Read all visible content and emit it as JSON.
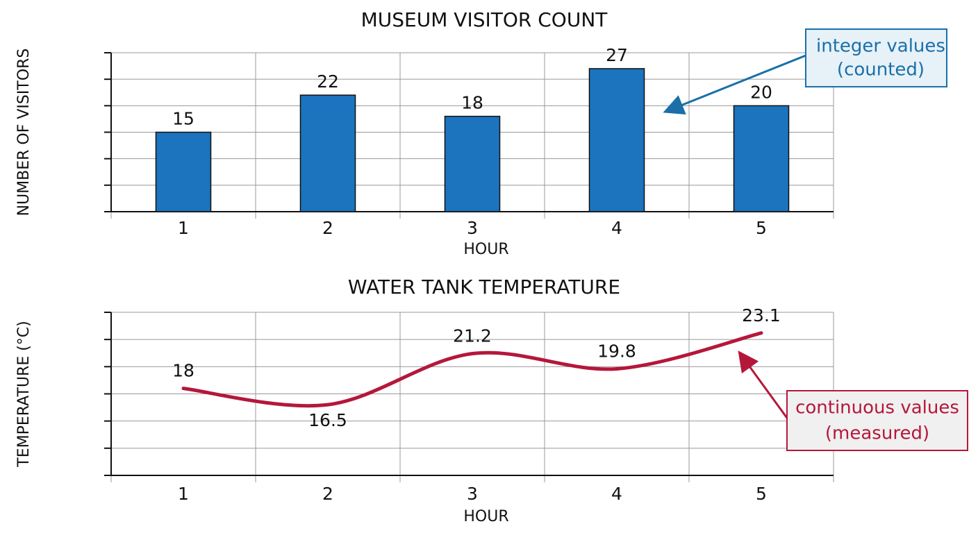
{
  "chart_data": [
    {
      "type": "bar",
      "title": "MUSEUM VISITOR COUNT",
      "ylabel": "NUMBER OF VISITORS",
      "xlabel": "HOUR",
      "categories": [
        "1",
        "2",
        "3",
        "4",
        "5"
      ],
      "values": [
        15,
        22,
        18,
        27,
        20
      ],
      "color": "#1b74bd",
      "ylim": [
        0,
        30
      ],
      "yticks": [
        0,
        5,
        10,
        15,
        20,
        25,
        30
      ],
      "ytick_labels": false,
      "grid": true,
      "annotation": [
        "integer values",
        "(counted)"
      ]
    },
    {
      "type": "line",
      "title": "WATER TANK TEMPERATURE",
      "ylabel": "TEMPERATURE (°C)",
      "xlabel": "HOUR",
      "categories": [
        "1",
        "2",
        "3",
        "4",
        "5"
      ],
      "values": [
        18,
        16.5,
        21.2,
        19.8,
        23.1
      ],
      "color": "#b5173a",
      "ylim": [
        10,
        25
      ],
      "yticks": [
        10,
        12.5,
        15,
        17.5,
        20,
        22.5,
        25
      ],
      "ytick_labels": false,
      "grid": true,
      "annotation": [
        "continuous values",
        "(measured)"
      ]
    }
  ]
}
